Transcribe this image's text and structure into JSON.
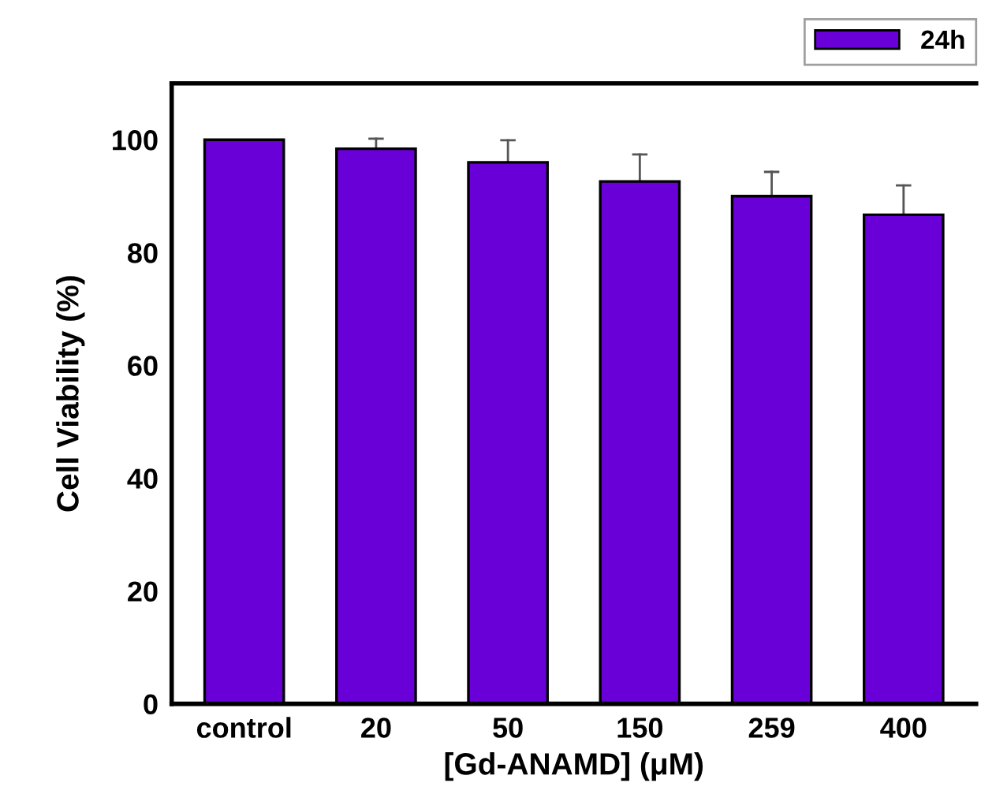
{
  "chart_data": {
    "type": "bar",
    "xlabel": "[Gd-ANAMD] (μM)",
    "ylabel": "Cell Viability (%)",
    "categories": [
      "control",
      "20",
      "50",
      "150",
      "259",
      "400"
    ],
    "series": [
      {
        "name": "24h",
        "color": "#6a00d8",
        "values": [
          100,
          98.4,
          96.0,
          92.6,
          90.0,
          86.7
        ],
        "errors": [
          null,
          [
            98.4,
            100.2
          ],
          [
            96.0,
            99.9
          ],
          [
            92.6,
            97.4
          ],
          [
            90.0,
            94.3
          ],
          [
            86.7,
            91.9
          ]
        ]
      }
    ],
    "ylim": [
      0,
      110
    ],
    "yticks": [
      0,
      20,
      40,
      60,
      80,
      100
    ],
    "grid": false,
    "legend": "top right"
  }
}
